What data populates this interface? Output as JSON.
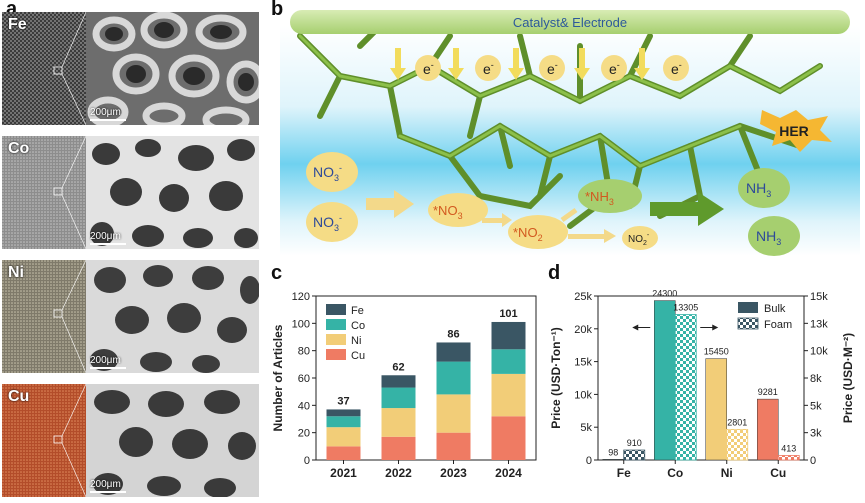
{
  "panel_a": {
    "letter": "a",
    "images": [
      {
        "element": "Fe",
        "scale": "200μm"
      },
      {
        "element": "Co",
        "scale": "200μm"
      },
      {
        "element": "Ni",
        "scale": "200μm"
      },
      {
        "element": "Cu",
        "scale": "200μm"
      }
    ]
  },
  "panel_b": {
    "letter": "b",
    "banner": "Catalyst& Electrode",
    "electron": "e",
    "electron_sup": "-",
    "her": "HER",
    "species": {
      "no3_base": "NO",
      "no3_sub": "3",
      "no3_sup": "-",
      "ads_no3_base": "*NO",
      "ads_no3_sub": "3",
      "ads_no2_base": "*NO",
      "ads_no2_sub": "2",
      "ads_nh3_base": "*NH",
      "ads_nh3_sub": "3",
      "no2_base": "NO",
      "no2_sub": "2",
      "no2_sup": "-",
      "nh3_base": "NH",
      "nh3_sub": "3"
    }
  },
  "panel_c": {
    "letter": "c"
  },
  "panel_d": {
    "letter": "d"
  },
  "chart_data": [
    {
      "type": "bar",
      "stacked": true,
      "categories": [
        "2021",
        "2022",
        "2023",
        "2024"
      ],
      "series": [
        {
          "name": "Cu",
          "color": "#ef7b63",
          "values": [
            10,
            17,
            20,
            32
          ]
        },
        {
          "name": "Ni",
          "color": "#f2cd78",
          "values": [
            14,
            21,
            28,
            31
          ]
        },
        {
          "name": "Co",
          "color": "#35b3a6",
          "values": [
            8,
            15,
            24,
            18
          ]
        },
        {
          "name": "Fe",
          "color": "#3a5664",
          "values": [
            5,
            9,
            14,
            20
          ]
        }
      ],
      "totals": [
        "37",
        "62",
        "86",
        "101"
      ],
      "ylabel": "Number of Articles",
      "ylim": [
        0,
        120
      ],
      "yticks": [
        "0",
        "20",
        "40",
        "60",
        "80",
        "100",
        "120"
      ],
      "legend": [
        "Fe",
        "Co",
        "Ni",
        "Cu"
      ],
      "legend_position": "top-left"
    },
    {
      "type": "bar",
      "grouped": true,
      "categories": [
        "Fe",
        "Co",
        "Ni",
        "Cu"
      ],
      "category_colors": [
        "#3a5664",
        "#35b3a6",
        "#f2cd78",
        "#ef7b63"
      ],
      "series": [
        {
          "name": "Bulk",
          "axis": "left",
          "values": [
            98,
            24300,
            15450,
            9281
          ],
          "labels": [
            "98",
            "24300",
            "15450",
            "9281"
          ]
        },
        {
          "name": "Foam",
          "axis": "right",
          "values": [
            910,
            13305,
            2801,
            413
          ],
          "labels": [
            "910",
            "13305",
            "2801",
            "413"
          ]
        }
      ],
      "ylabel_left": "Price (USD·Ton⁻¹)",
      "ylabel_right": "Price (USD·M⁻²)",
      "ylim_left": [
        0,
        25000
      ],
      "ylim_right": [
        0,
        15000
      ],
      "yticks_left": [
        "0",
        "5k",
        "10k",
        "15k",
        "20k",
        "25k"
      ],
      "yticks_right": [
        "0",
        "3k",
        "5k",
        "8k",
        "10k",
        "13k",
        "15k"
      ],
      "legend": [
        "Bulk",
        "Foam"
      ],
      "legend_position": "top-right"
    }
  ]
}
